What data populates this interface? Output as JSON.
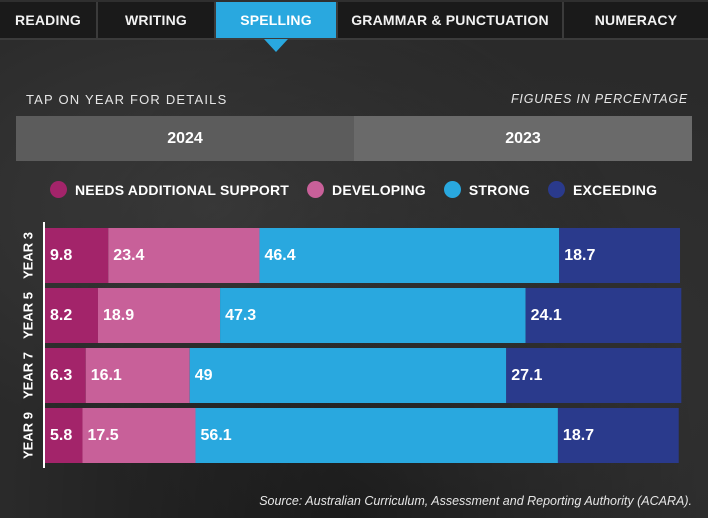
{
  "tabs": [
    {
      "label": "READING",
      "active": false
    },
    {
      "label": "WRITING",
      "active": false
    },
    {
      "label": "SPELLING",
      "active": true
    },
    {
      "label": "GRAMMAR & PUNCTUATION",
      "active": false
    },
    {
      "label": "NUMERACY",
      "active": false
    }
  ],
  "hint": "TAP ON YEAR FOR DETAILS",
  "figures_note": "FIGURES IN PERCENTAGE",
  "year_toggle": [
    "2024",
    "2023"
  ],
  "source": "Source: Australian Curriculum, Assessment and Reporting Authority (ACARA).",
  "chart_data": {
    "type": "bar",
    "orientation": "horizontal",
    "stacked": true,
    "categories": [
      "YEAR 3",
      "YEAR 5",
      "YEAR 7",
      "YEAR 9"
    ],
    "series": [
      {
        "name": "NEEDS ADDITIONAL SUPPORT",
        "color": "#a3246a",
        "values": [
          9.8,
          8.2,
          6.3,
          5.8
        ]
      },
      {
        "name": "DEVELOPING",
        "color": "#c86099",
        "values": [
          23.4,
          18.9,
          16.1,
          17.5
        ]
      },
      {
        "name": "STRONG",
        "color": "#29a8df",
        "values": [
          46.4,
          47.3,
          49,
          56.1
        ]
      },
      {
        "name": "EXCEEDING",
        "color": "#2a3a8c",
        "values": [
          18.7,
          24.1,
          27.1,
          18.7
        ]
      }
    ],
    "unit": "%",
    "legend_position": "top"
  }
}
